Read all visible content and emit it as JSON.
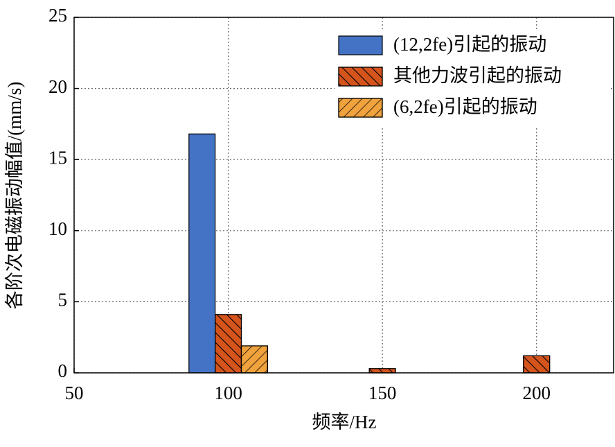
{
  "chart_data": {
    "type": "bar",
    "xlabel": "频率/Hz",
    "ylabel": "各阶次电磁振动幅值/(mm/s)",
    "x": [
      100,
      150,
      200
    ],
    "series": [
      {
        "name": "(12,2fe)引起的振动",
        "color": "#4472c4",
        "hatch": "none",
        "values": [
          16.8,
          null,
          null
        ]
      },
      {
        "name": "其他力波引起的振动",
        "color": "#d4541c",
        "hatch": "backslash",
        "values": [
          4.1,
          0.3,
          1.2
        ]
      },
      {
        "name": "(6,2fe)引起的振动",
        "color": "#f0a23c",
        "hatch": "slash",
        "values": [
          1.9,
          null,
          null
        ]
      }
    ],
    "xlim": [
      50,
      225
    ],
    "xticks": [
      50,
      100,
      150,
      200
    ],
    "ylim": [
      0,
      25
    ],
    "yticks": [
      0,
      5,
      10,
      15,
      20,
      25
    ],
    "grid": true,
    "legend": "upper right"
  }
}
